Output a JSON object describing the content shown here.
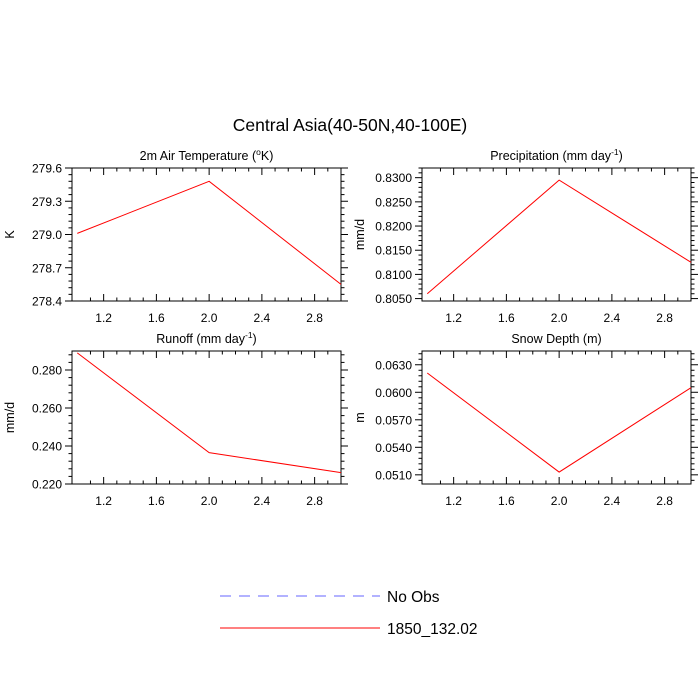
{
  "figure": {
    "title": "Central Asia(40-50N,40-100E)"
  },
  "legend": {
    "entries": [
      {
        "label": "No Obs",
        "color": "#6666ff",
        "dashed": true
      },
      {
        "label": "1850_132.02",
        "color": "#ff0000",
        "dashed": false
      }
    ]
  },
  "chart_data": [
    {
      "type": "line",
      "title_main": "2m Air Temperature (",
      "title_sup": "o",
      "title_tail": "K)",
      "ylabel": "K",
      "xlim": [
        0.96,
        3.0
      ],
      "ylim": [
        278.4,
        279.6
      ],
      "xticks": [
        "1.2",
        "1.6",
        "2.0",
        "2.4",
        "2.8"
      ],
      "xtick_values": [
        1.2,
        1.6,
        2.0,
        2.4,
        2.8
      ],
      "yticks": [
        "278.4",
        "278.7",
        "279.0",
        "279.3",
        "279.6"
      ],
      "ytick_values": [
        278.4,
        278.7,
        279.0,
        279.3,
        279.6
      ],
      "series": [
        {
          "name": "1850_132.02",
          "color": "#ff0000",
          "x": [
            1,
            2,
            3
          ],
          "y": [
            279.01,
            279.48,
            278.55
          ]
        }
      ]
    },
    {
      "type": "line",
      "title_main": "Precipitation (mm day",
      "title_sup": "-1",
      "title_tail": ")",
      "ylabel": "mm/d",
      "xlim": [
        0.96,
        3.0
      ],
      "ylim": [
        0.8045,
        0.832
      ],
      "xticks": [
        "1.2",
        "1.6",
        "2.0",
        "2.4",
        "2.8"
      ],
      "xtick_values": [
        1.2,
        1.6,
        2.0,
        2.4,
        2.8
      ],
      "yticks": [
        "0.8050",
        "0.8100",
        "0.8150",
        "0.8200",
        "0.8250",
        "0.8300"
      ],
      "ytick_values": [
        0.805,
        0.81,
        0.815,
        0.82,
        0.825,
        0.83
      ],
      "series": [
        {
          "name": "1850_132.02",
          "color": "#ff0000",
          "x": [
            1,
            2,
            3
          ],
          "y": [
            0.806,
            0.8295,
            0.8125
          ]
        }
      ]
    },
    {
      "type": "line",
      "title_main": "Runoff (mm day",
      "title_sup": "-1",
      "title_tail": ")",
      "ylabel": "mm/d",
      "xlim": [
        0.96,
        3.0
      ],
      "ylim": [
        0.22,
        0.29
      ],
      "xticks": [
        "1.2",
        "1.6",
        "2.0",
        "2.4",
        "2.8"
      ],
      "xtick_values": [
        1.2,
        1.6,
        2.0,
        2.4,
        2.8
      ],
      "yticks": [
        "0.220",
        "0.240",
        "0.260",
        "0.280"
      ],
      "ytick_values": [
        0.22,
        0.24,
        0.26,
        0.28
      ],
      "series": [
        {
          "name": "1850_132.02",
          "color": "#ff0000",
          "x": [
            1,
            2,
            3
          ],
          "y": [
            0.289,
            0.2365,
            0.226
          ]
        }
      ]
    },
    {
      "type": "line",
      "title_main": "Snow Depth (m)",
      "title_sup": "",
      "title_tail": "",
      "ylabel": "m",
      "xlim": [
        0.96,
        3.0
      ],
      "ylim": [
        0.05,
        0.0645
      ],
      "xticks": [
        "1.2",
        "1.6",
        "2.0",
        "2.4",
        "2.8"
      ],
      "xtick_values": [
        1.2,
        1.6,
        2.0,
        2.4,
        2.8
      ],
      "yticks": [
        "0.0510",
        "0.0540",
        "0.0570",
        "0.0600",
        "0.0630"
      ],
      "ytick_values": [
        0.051,
        0.054,
        0.057,
        0.06,
        0.063
      ],
      "series": [
        {
          "name": "1850_132.02",
          "color": "#ff0000",
          "x": [
            1,
            2,
            3
          ],
          "y": [
            0.0621,
            0.0513,
            0.0605
          ]
        }
      ]
    }
  ]
}
